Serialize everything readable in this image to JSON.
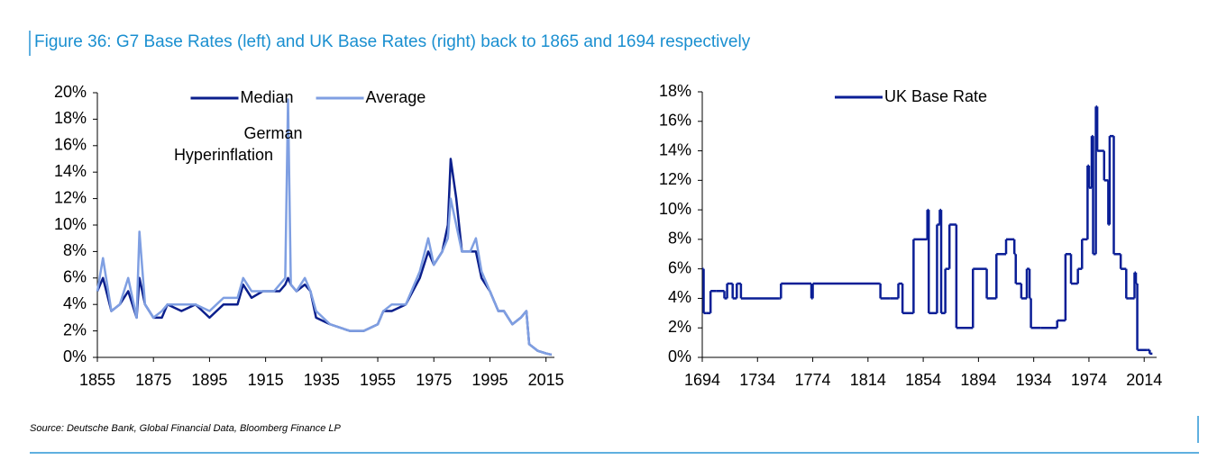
{
  "title": "Figure 36: G7 Base Rates (left) and UK Base Rates (right) back to 1865 and 1694 respectively",
  "source": "Source: Deutsche Bank, Global Financial Data, Bloomberg Finance LP",
  "chart_data": [
    {
      "type": "line",
      "legend": "upper center",
      "grid": false,
      "annotation": [
        "German",
        "Hyperinflation"
      ],
      "x": [
        1855,
        1857,
        1860,
        1863,
        1866,
        1869,
        1870,
        1872,
        1875,
        1878,
        1880,
        1885,
        1890,
        1895,
        1900,
        1905,
        1907,
        1910,
        1914,
        1918,
        1920,
        1922,
        1923,
        1924,
        1926,
        1929,
        1931,
        1933,
        1938,
        1945,
        1950,
        1955,
        1957,
        1960,
        1965,
        1970,
        1973,
        1975,
        1978,
        1980,
        1981,
        1983,
        1985,
        1988,
        1990,
        1992,
        1995,
        1998,
        2000,
        2003,
        2006,
        2008,
        2009,
        2012,
        2015,
        2017
      ],
      "series": [
        {
          "name": "Median",
          "color": "#0b1f8c",
          "values": [
            5,
            6,
            3.5,
            4,
            5,
            3,
            6,
            4,
            3,
            3,
            4,
            3.5,
            4,
            3,
            4,
            4,
            5.5,
            4.5,
            5,
            5,
            5,
            5.5,
            6,
            5.5,
            5,
            5.5,
            5,
            3,
            2.5,
            2,
            2,
            2.5,
            3.5,
            3.5,
            4,
            6,
            8,
            7,
            8,
            10,
            15,
            12,
            8,
            8,
            8,
            6,
            5,
            3.5,
            3.5,
            2.5,
            3,
            3.5,
            1,
            0.5,
            0.3,
            0.2
          ]
        },
        {
          "name": "Average",
          "color": "#7f9fe2",
          "values": [
            5,
            7.5,
            3.5,
            4,
            6,
            3,
            9.5,
            4,
            3,
            3.5,
            4,
            4,
            4,
            3.5,
            4.5,
            4.5,
            6,
            5,
            5,
            5,
            5.5,
            6,
            19.5,
            5.5,
            5,
            6,
            5,
            3.5,
            2.5,
            2,
            2,
            2.5,
            3.5,
            4,
            4,
            6.5,
            9,
            7,
            8,
            9,
            12,
            10,
            8,
            8,
            9,
            6.5,
            5,
            3.5,
            3.5,
            2.5,
            3,
            3.5,
            1,
            0.5,
            0.3,
            0.2
          ]
        }
      ],
      "xlim": [
        1855,
        2018
      ],
      "xticks": [
        1855,
        1875,
        1895,
        1915,
        1935,
        1955,
        1975,
        1995,
        2015
      ],
      "ylim": [
        0,
        20
      ],
      "yticks": [
        {
          "value": 0,
          "label": "0%"
        },
        {
          "value": 2,
          "label": "2%"
        },
        {
          "value": 4,
          "label": "4%"
        },
        {
          "value": 6,
          "label": "6%"
        },
        {
          "value": 8,
          "label": "8%"
        },
        {
          "value": 10,
          "label": "10%"
        },
        {
          "value": 12,
          "label": "12%"
        },
        {
          "value": 14,
          "label": "14%"
        },
        {
          "value": 16,
          "label": "16%"
        },
        {
          "value": 18,
          "label": "18%"
        },
        {
          "value": 20,
          "label": "20%"
        }
      ]
    },
    {
      "type": "line",
      "step": "post",
      "legend": "upper left",
      "grid": false,
      "x": [
        1694,
        1695,
        1697,
        1700,
        1704,
        1710,
        1712,
        1714,
        1716,
        1719,
        1720,
        1722,
        1750,
        1751,
        1773,
        1774,
        1822,
        1823,
        1830,
        1836,
        1839,
        1847,
        1857,
        1858,
        1864,
        1866,
        1867,
        1870,
        1873,
        1878,
        1890,
        1900,
        1907,
        1914,
        1920,
        1921,
        1925,
        1929,
        1931,
        1932,
        1939,
        1951,
        1957,
        1961,
        1966,
        1969,
        1973,
        1974,
        1976,
        1977,
        1979,
        1980,
        1985,
        1988,
        1989,
        1992,
        1997,
        2001,
        2003,
        2007,
        2008,
        2009,
        2016,
        2018
      ],
      "series": [
        {
          "name": "UK Base Rate",
          "color": "#0a1e96",
          "values": [
            6,
            3,
            3,
            4.5,
            4.5,
            4,
            5,
            5,
            4,
            5,
            5,
            4,
            4,
            5,
            4,
            5,
            5,
            4,
            4,
            5,
            3,
            8,
            10,
            3,
            9,
            10,
            3,
            6,
            9,
            2,
            6,
            4,
            7,
            8,
            7,
            5,
            4,
            6,
            4,
            2,
            2,
            2.5,
            7,
            5,
            6,
            8,
            13,
            11.5,
            15,
            7,
            17,
            14,
            12,
            9,
            15,
            7,
            6,
            4,
            4,
            5.75,
            5,
            0.5,
            0.5,
            0.25
          ]
        }
      ],
      "xlim": [
        1694,
        2023
      ],
      "xticks": [
        1694,
        1734,
        1774,
        1814,
        1854,
        1894,
        1934,
        1974,
        2014
      ],
      "ylim": [
        0,
        18
      ],
      "yticks": [
        {
          "value": 0,
          "label": "0%"
        },
        {
          "value": 2,
          "label": "2%"
        },
        {
          "value": 4,
          "label": "4%"
        },
        {
          "value": 6,
          "label": "6%"
        },
        {
          "value": 8,
          "label": "8%"
        },
        {
          "value": 10,
          "label": "10%"
        },
        {
          "value": 12,
          "label": "12%"
        },
        {
          "value": 14,
          "label": "14%"
        },
        {
          "value": 16,
          "label": "16%"
        },
        {
          "value": 18,
          "label": "18%"
        }
      ]
    }
  ]
}
